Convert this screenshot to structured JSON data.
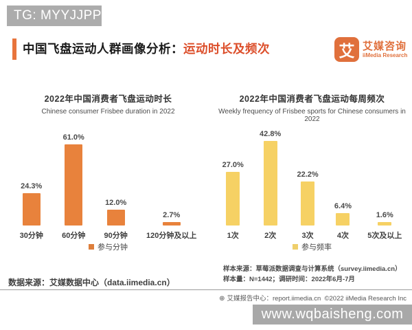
{
  "overlay": {
    "tg_tag": "TG: MYYJJPP"
  },
  "header": {
    "title_black": "中国飞盘运动人群画像分析：",
    "title_orange": "运动时长及频次",
    "logo_glyph": "艾",
    "logo_cn": "艾媒咨询",
    "logo_en": "iiMedia Research",
    "accent_color": "#e8743c",
    "title_orange_color": "#dc4e2a"
  },
  "chart_data": [
    {
      "type": "bar",
      "title": "2022年中国消费者飞盘运动时长",
      "subtitle": "Chinese consumer Frisbee duration in 2022",
      "categories": [
        "30分钟",
        "60分钟",
        "90分钟",
        "120分钟及以上"
      ],
      "values": [
        24.3,
        61.0,
        12.0,
        2.7
      ],
      "value_labels": [
        "24.3%",
        "61.0%",
        "12.0%",
        "2.7%"
      ],
      "legend": "参与分钟",
      "legend_position": "bottom",
      "bar_color": "#e8823c",
      "legend_color": "#dd7e3c",
      "ylim": [
        0,
        65
      ],
      "grid": false
    },
    {
      "type": "bar",
      "title": "2022年中国消费者飞盘运动每周频次",
      "subtitle": "Weekly frequency of Frisbee sports for Chinese consumers in 2022",
      "categories": [
        "1次",
        "2次",
        "3次",
        "4次",
        "5次及以上"
      ],
      "values": [
        27.0,
        42.8,
        22.2,
        6.4,
        1.6
      ],
      "value_labels": [
        "27.0%",
        "42.8%",
        "22.2%",
        "6.4%",
        "1.6%"
      ],
      "legend": "参与频率",
      "legend_position": "bottom",
      "bar_color": "#f6d164",
      "legend_color": "#efcf6b",
      "ylim": [
        0,
        45
      ],
      "grid": false
    }
  ],
  "footer": {
    "sample_source": "样本来源：草莓派数据调查与计算系统（survey.iimedia.cn）",
    "sample_size": "样本量：N=1442；调研时间：2022年6月-7月",
    "data_source": "数据来源：艾媒数据中心（data.iimedia.cn）",
    "report_icon": "⊕",
    "report_center": "艾媒报告中心：report.iimedia.cn",
    "copyright": "©2022 iiMedia Research Inc",
    "watermark_site": "www.wqbaisheng.com"
  }
}
